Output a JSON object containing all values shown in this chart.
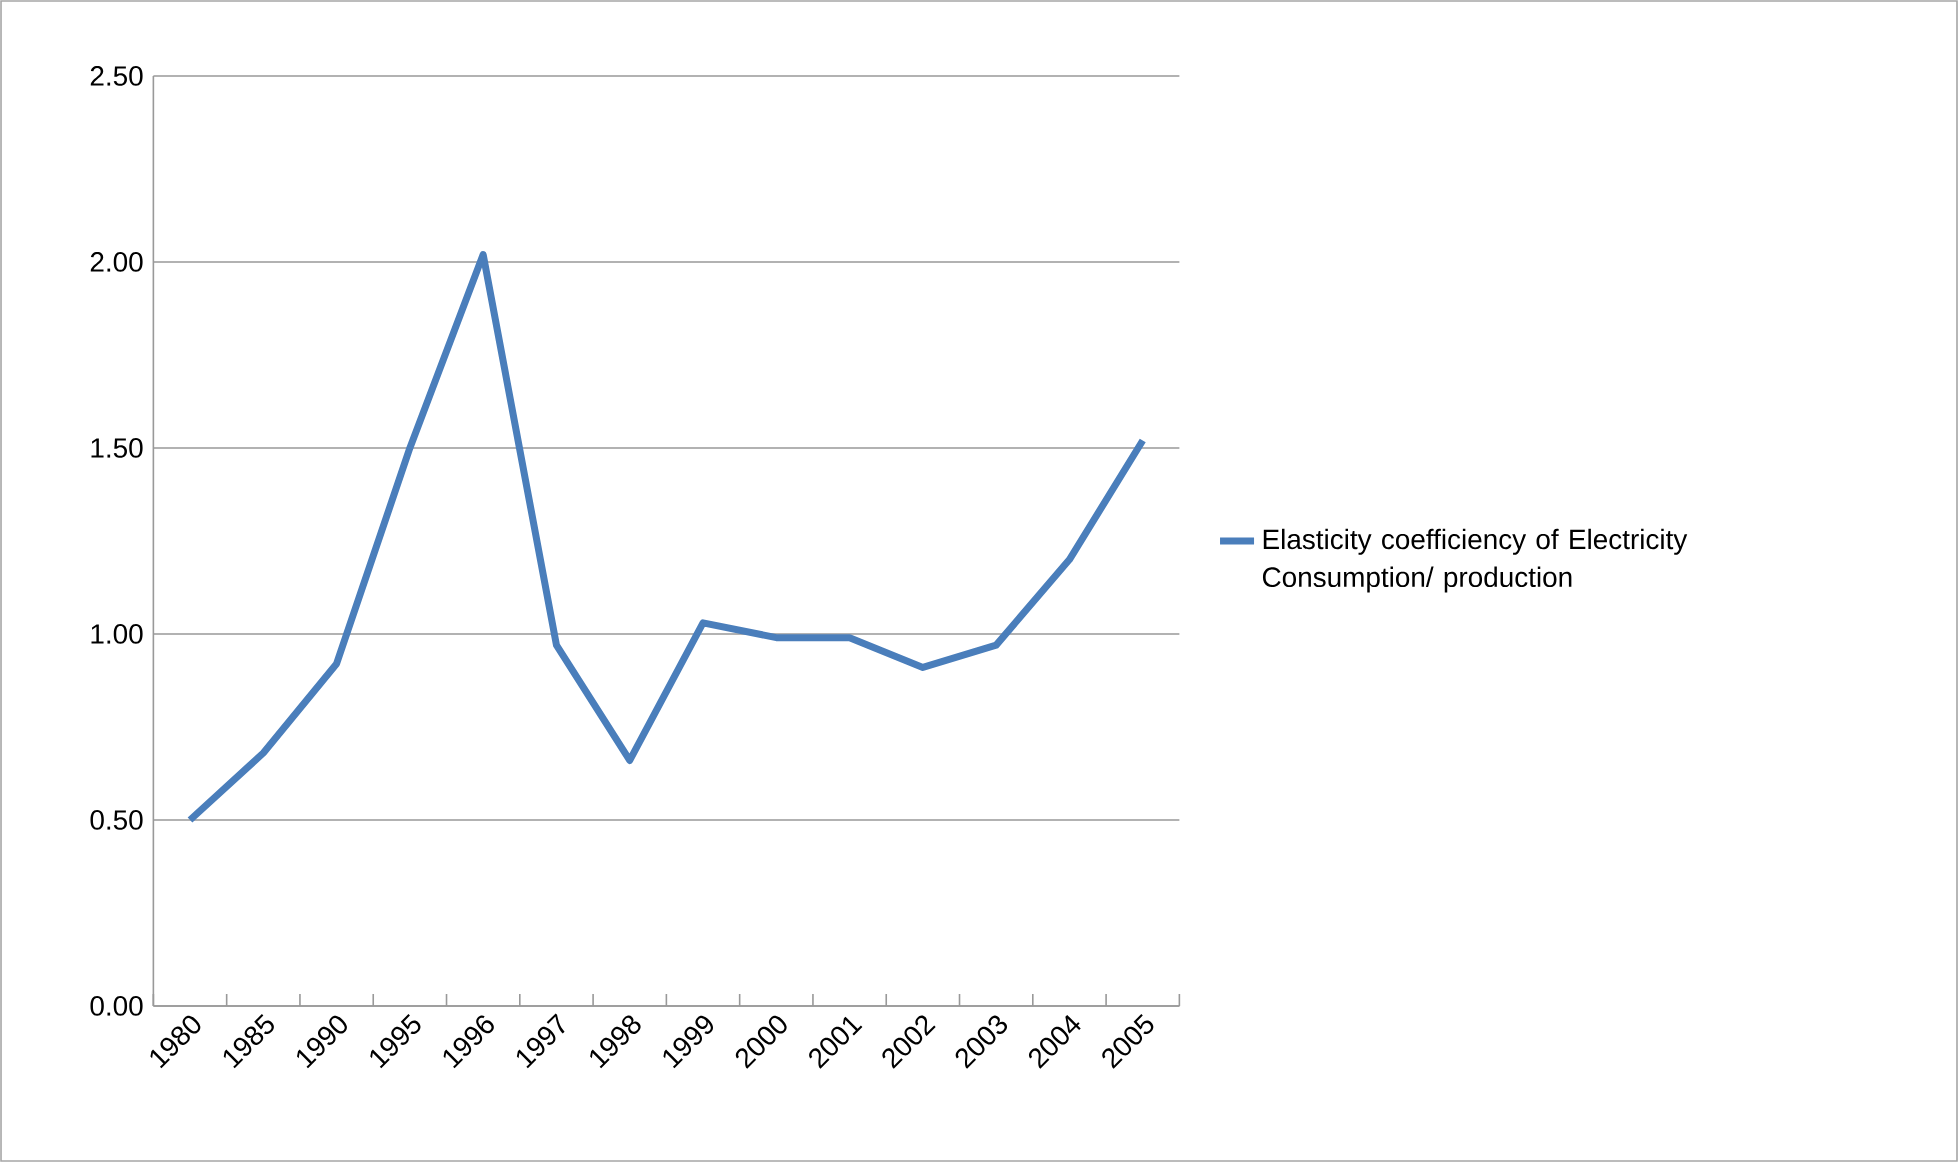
{
  "chart_data": {
    "type": "line",
    "categories": [
      "1980",
      "1985",
      "1990",
      "1995",
      "1996",
      "1997",
      "1998",
      "1999",
      "2000",
      "2001",
      "2002",
      "2003",
      "2004",
      "2005"
    ],
    "series": [
      {
        "name": "Elasticity coefficiency of Electricity Consumption/ production",
        "color": "#4a7ebb",
        "values": [
          0.5,
          0.68,
          0.92,
          1.5,
          2.02,
          0.97,
          0.66,
          1.03,
          0.99,
          0.99,
          0.91,
          0.97,
          1.2,
          1.52
        ]
      }
    ],
    "ylim": [
      0,
      2.5
    ],
    "yticks": [
      {
        "value": 0,
        "label": "0.00"
      },
      {
        "value": 0.5,
        "label": "0.50"
      },
      {
        "value": 1.0,
        "label": "1.00"
      },
      {
        "value": 1.5,
        "label": "1.50"
      },
      {
        "value": 2.0,
        "label": "2.00"
      },
      {
        "value": 2.5,
        "label": "2.50"
      }
    ],
    "grid": "y",
    "legend": "right",
    "marker": "none",
    "line_style": "solid"
  }
}
